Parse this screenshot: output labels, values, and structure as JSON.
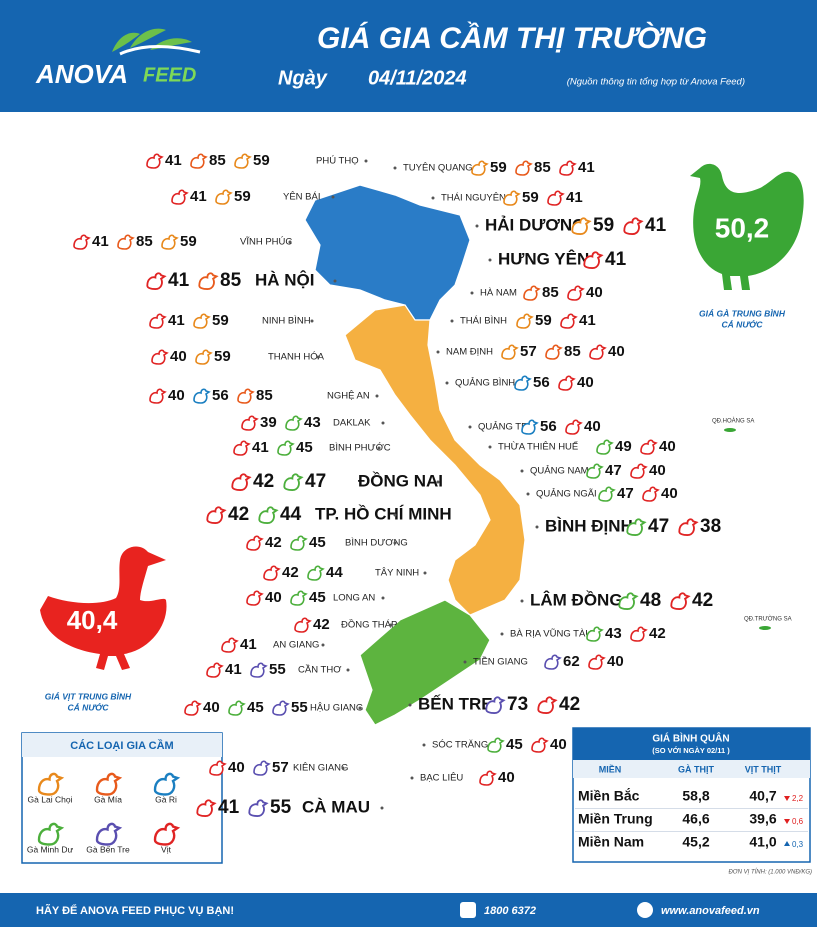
{
  "header": {
    "logo_main": "ANOVA",
    "logo_sub": "FEED",
    "title": "GIÁ GIA CẦM THỊ TRƯỜNG",
    "date_prefix": "Ngày",
    "date": "04/11/2024",
    "source": "(Nguồn thông tin tổng hợp từ Anova Feed)"
  },
  "legend": {
    "title": "CÁC LOẠI GIA CẦM",
    "items": [
      {
        "label": "Gà Lai Chọi",
        "color": "#e8891c"
      },
      {
        "label": "Gà Mía",
        "color": "#e85a1c"
      },
      {
        "label": "Gà Ri",
        "color": "#1b7fc1"
      },
      {
        "label": "Gà Minh Dư",
        "color": "#4caf3c"
      },
      {
        "label": "Gà Bến Tre",
        "color": "#5a4fb0"
      },
      {
        "label": "Vịt",
        "color": "#e02424"
      }
    ]
  },
  "provinces": [
    {
      "name": "PHÚ THỌ",
      "prices": [
        {
          "type": "Vịt",
          "value": 41
        },
        {
          "type": "Gà Mía",
          "value": 85
        },
        {
          "type": "Gà Lai Chọi",
          "value": 59
        }
      ]
    },
    {
      "name": "YÊN BÁI",
      "prices": [
        {
          "type": "Vịt",
          "value": 41
        },
        {
          "type": "Gà Lai Chọi",
          "value": 59
        }
      ]
    },
    {
      "name": "VĨNH PHÚC",
      "prices": [
        {
          "type": "Vịt",
          "value": 41
        },
        {
          "type": "Gà Mía",
          "value": 85
        },
        {
          "type": "Gà Lai Chọi",
          "value": 59
        }
      ]
    },
    {
      "name": "HÀ NỘI",
      "prices": [
        {
          "type": "Vịt",
          "value": 41
        },
        {
          "type": "Gà Mía",
          "value": 85
        }
      ]
    },
    {
      "name": "NINH BÌNH",
      "prices": [
        {
          "type": "Vịt",
          "value": 41
        },
        {
          "type": "Gà Lai Chọi",
          "value": 59
        }
      ]
    },
    {
      "name": "THANH HÓA",
      "prices": [
        {
          "type": "Vịt",
          "value": 40
        },
        {
          "type": "Gà Lai Chọi",
          "value": 59
        }
      ]
    },
    {
      "name": "NGHỆ AN",
      "prices": [
        {
          "type": "Vịt",
          "value": 40
        },
        {
          "type": "Gà Ri",
          "value": 56
        },
        {
          "type": "Gà Mía",
          "value": 85
        }
      ]
    },
    {
      "name": "DAKLAK",
      "prices": [
        {
          "type": "Vịt",
          "value": 39
        },
        {
          "type": "Gà Minh Dư",
          "value": 43
        }
      ]
    },
    {
      "name": "BÌNH PHƯỚC",
      "prices": [
        {
          "type": "Vịt",
          "value": 41
        },
        {
          "type": "Gà Minh Dư",
          "value": 45
        }
      ]
    },
    {
      "name": "ĐỒNG NAI",
      "prices": [
        {
          "type": "Vịt",
          "value": 42
        },
        {
          "type": "Gà Minh Dư",
          "value": 47
        }
      ]
    },
    {
      "name": "TP. HỒ CHÍ MINH",
      "prices": [
        {
          "type": "Vịt",
          "value": 42
        },
        {
          "type": "Gà Minh Dư",
          "value": 44
        }
      ]
    },
    {
      "name": "BÌNH DƯƠNG",
      "prices": [
        {
          "type": "Vịt",
          "value": 42
        },
        {
          "type": "Gà Minh Dư",
          "value": 45
        }
      ]
    },
    {
      "name": "TÂY NINH",
      "prices": [
        {
          "type": "Vịt",
          "value": 42
        },
        {
          "type": "Gà Minh Dư",
          "value": 44
        }
      ]
    },
    {
      "name": "LONG AN",
      "prices": [
        {
          "type": "Vịt",
          "value": 40
        },
        {
          "type": "Gà Minh Dư",
          "value": 45
        }
      ]
    },
    {
      "name": "ĐỒNG THÁP",
      "prices": [
        {
          "type": "Vịt",
          "value": 42
        }
      ]
    },
    {
      "name": "AN GIANG",
      "prices": [
        {
          "type": "Vịt",
          "value": 41
        }
      ]
    },
    {
      "name": "CẦN THƠ",
      "prices": [
        {
          "type": "Vịt",
          "value": 41
        },
        {
          "type": "Gà Bến Tre",
          "value": 55
        }
      ]
    },
    {
      "name": "HẬU GIANG",
      "prices": [
        {
          "type": "Vịt",
          "value": 40
        },
        {
          "type": "Gà Minh Dư",
          "value": 45
        },
        {
          "type": "Gà Bến Tre",
          "value": 55
        }
      ]
    },
    {
      "name": "KIÊN GIANG",
      "prices": [
        {
          "type": "Vịt",
          "value": 40
        },
        {
          "type": "Gà Bến Tre",
          "value": 57
        }
      ]
    },
    {
      "name": "CÀ MAU",
      "prices": [
        {
          "type": "Vịt",
          "value": 41
        },
        {
          "type": "Gà Bến Tre",
          "value": 55
        }
      ]
    },
    {
      "name": "TUYÊN QUANG",
      "prices": [
        {
          "type": "Gà Lai Chọi",
          "value": 59
        },
        {
          "type": "Gà Mía",
          "value": 85
        },
        {
          "type": "Vịt",
          "value": 41
        }
      ]
    },
    {
      "name": "THÁI NGUYÊN",
      "prices": [
        {
          "type": "Gà Lai Chọi",
          "value": 59
        },
        {
          "type": "Vịt",
          "value": 41
        }
      ]
    },
    {
      "name": "HẢI DƯƠNG",
      "prices": [
        {
          "type": "Gà Lai Chọi",
          "value": 59
        },
        {
          "type": "Vịt",
          "value": 41
        }
      ]
    },
    {
      "name": "HƯNG YÊN",
      "prices": [
        {
          "type": "Vịt",
          "value": 41
        }
      ]
    },
    {
      "name": "HÀ NAM",
      "prices": [
        {
          "type": "Gà Mía",
          "value": 85
        },
        {
          "type": "Vịt",
          "value": 40
        }
      ]
    },
    {
      "name": "THÁI BÌNH",
      "prices": [
        {
          "type": "Gà Lai Chọi",
          "value": 59
        },
        {
          "type": "Vịt",
          "value": 41
        }
      ]
    },
    {
      "name": "NAM ĐỊNH",
      "prices": [
        {
          "type": "Gà Lai Chọi",
          "value": 57
        },
        {
          "type": "Gà Mía",
          "value": 85
        },
        {
          "type": "Vịt",
          "value": 40
        }
      ]
    },
    {
      "name": "QUẢNG BÌNH",
      "prices": [
        {
          "type": "Gà Ri",
          "value": 56
        },
        {
          "type": "Vịt",
          "value": 40
        }
      ]
    },
    {
      "name": "QUẢNG TRỊ",
      "prices": [
        {
          "type": "Gà Ri",
          "value": 56
        },
        {
          "type": "Vịt",
          "value": 40
        }
      ]
    },
    {
      "name": "THỪA THIÊN HUẾ",
      "prices": [
        {
          "type": "Gà Minh Dư",
          "value": 49
        },
        {
          "type": "Vịt",
          "value": 40
        }
      ]
    },
    {
      "name": "QUẢNG NAM",
      "prices": [
        {
          "type": "Gà Minh Dư",
          "value": 47
        },
        {
          "type": "Vịt",
          "value": 40
        }
      ]
    },
    {
      "name": "QUẢNG NGÃI",
      "prices": [
        {
          "type": "Gà Minh Dư",
          "value": 47
        },
        {
          "type": "Vịt",
          "value": 40
        }
      ]
    },
    {
      "name": "BÌNH ĐỊNH",
      "prices": [
        {
          "type": "Gà Minh Dư",
          "value": 47
        },
        {
          "type": "Vịt",
          "value": 38
        }
      ]
    },
    {
      "name": "LÂM ĐỒNG",
      "prices": [
        {
          "type": "Gà Minh Dư",
          "value": 48
        },
        {
          "type": "Vịt",
          "value": 42
        }
      ]
    },
    {
      "name": "BÀ RỊA VŨNG TÀU",
      "prices": [
        {
          "type": "Gà Minh Dư",
          "value": 43
        },
        {
          "type": "Vịt",
          "value": 42
        }
      ]
    },
    {
      "name": "TIỀN GIANG",
      "prices": [
        {
          "type": "Gà Bến Tre",
          "value": 62
        },
        {
          "type": "Vịt",
          "value": 40
        }
      ]
    },
    {
      "name": "BẾN TRE:",
      "prices": [
        {
          "type": "Gà Bến Tre",
          "value": 73
        },
        {
          "type": "Vịt",
          "value": 42
        }
      ]
    },
    {
      "name": "SÓC TRĂNG",
      "prices": [
        {
          "type": "Gà Minh Dư",
          "value": 45
        },
        {
          "type": "Vịt",
          "value": 40
        }
      ]
    },
    {
      "name": "BẠC LIÊU",
      "prices": [
        {
          "type": "Vịt",
          "value": 40
        }
      ]
    }
  ],
  "islands": [
    "QĐ.HOÀNG SA",
    "QĐ.TRƯỜNG SA"
  ],
  "chicken_average": {
    "value": {
      "value": 50.2,
      "label": "50,2"
    },
    "caption": [
      "GIÁ GÀ TRUNG BÌNH",
      "CẢ NƯỚC"
    ],
    "color": "#3aa635"
  },
  "duck_average": {
    "value": {
      "value": 40.4,
      "label": "40,4"
    },
    "caption": [
      "GIÁ VỊT TRUNG BÌNH",
      "CẢ NƯỚC"
    ],
    "color": "#e8231f"
  },
  "table": {
    "title": "GIÁ BÌNH QUÂN",
    "subtitle": "(SO VỚI NGÀY  02/11  )",
    "columns": [
      "MIỀN",
      "GÀ THỊT",
      "VỊT THỊT"
    ],
    "rows": [
      {
        "region": "Miền Bắc",
        "chicken": "58,8",
        "duck": "40,7",
        "change": {
          "value": -2.2,
          "label": "2,2"
        }
      },
      {
        "region": "Miền Trung",
        "chicken": "46,6",
        "duck": "39,6",
        "change": {
          "value": -0.6,
          "label": "0,6"
        }
      },
      {
        "region": "Miền Nam",
        "chicken": "45,2",
        "duck": "41,0",
        "change": {
          "value": 0.3,
          "label": "0,3"
        }
      }
    ],
    "unit": "ĐƠN VỊ TÍNH: (1.000 VNĐ/KG)"
  },
  "footer": {
    "slogan": "HÃY ĐỂ ANOVA FEED PHỤC VỤ BẠN!",
    "phone": "1800 6372",
    "website": "www.anovafeed.vn"
  }
}
